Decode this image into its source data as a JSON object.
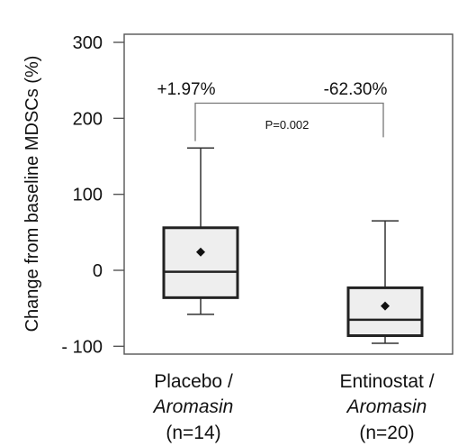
{
  "chart_data": {
    "type": "box",
    "ylabel": "Change from baseline MDSCs (%)",
    "ylim": [
      -105,
      310
    ],
    "yticks": [
      300,
      200,
      100,
      0,
      -100
    ],
    "ytick_labels": [
      "300",
      "200",
      "100",
      "0",
      "- 100"
    ],
    "groups": [
      {
        "label_line1": "Placebo /",
        "label_line2": "Aromasin",
        "label_line3": "(n=14)",
        "min": -58,
        "q1": -36,
        "median": -2,
        "q3": 56,
        "max": 161,
        "mean": 24,
        "annotation": "+1.97%"
      },
      {
        "label_line1": "Entinostat /",
        "label_line2": "Aromasin",
        "label_line3": "(n=20)",
        "min": -96,
        "q1": -86,
        "median": -65,
        "q3": -23,
        "max": 65,
        "mean": -47,
        "annotation": "-62.30%"
      }
    ],
    "comparison": {
      "text": "P=0.002",
      "y": 220
    }
  }
}
